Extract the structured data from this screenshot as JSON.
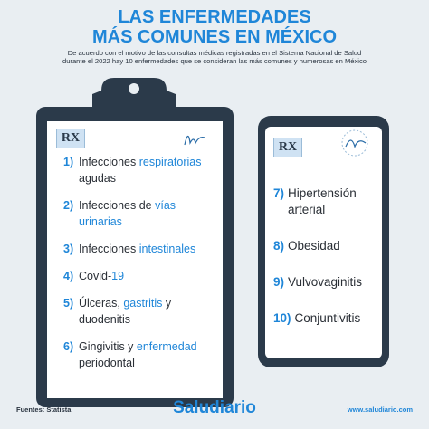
{
  "header": {
    "title_lines": [
      "LAS ENFERMEDADES",
      "MÁS COMUNES EN MÉXICO"
    ],
    "subtitle_lines": [
      "De acuerdo con el motivo de las consultas médicas registradas en el Sistema Nacional de Salud",
      "durante el 2022 hay 10 enfermedades que se consideran las más comunes y numerosas en México"
    ]
  },
  "clipboard": {
    "label": "RX",
    "items": [
      {
        "number": "1)",
        "parts": [
          {
            "text": "Infecciones ",
            "highlight": false
          },
          {
            "text": "respiratorias",
            "highlight": true
          },
          {
            "text": " agudas",
            "highlight": false
          }
        ]
      },
      {
        "number": "2)",
        "parts": [
          {
            "text": "Infecciones de ",
            "highlight": false
          },
          {
            "text": "vías urinarias",
            "highlight": true
          }
        ]
      },
      {
        "number": "3)",
        "parts": [
          {
            "text": "Infecciones ",
            "highlight": false
          },
          {
            "text": "intestinales",
            "highlight": true
          }
        ]
      },
      {
        "number": "4)",
        "parts": [
          {
            "text": "Covid-",
            "highlight": false
          },
          {
            "text": "19",
            "highlight": true
          }
        ]
      },
      {
        "number": "5)",
        "parts": [
          {
            "text": "Úlceras, ",
            "highlight": false
          },
          {
            "text": "gastritis",
            "highlight": true
          },
          {
            "text": " y duodenitis",
            "highlight": false
          }
        ]
      },
      {
        "number": "6)",
        "parts": [
          {
            "text": "Gingivitis y ",
            "highlight": false
          },
          {
            "text": "enfermedad",
            "highlight": true
          },
          {
            "text": " periodontal",
            "highlight": false
          }
        ]
      }
    ]
  },
  "phone": {
    "label": "RX",
    "items": [
      {
        "number": "7)",
        "parts": [
          {
            "text": "Hipertensión arterial",
            "highlight": false
          }
        ]
      },
      {
        "number": "8)",
        "parts": [
          {
            "text": "Obesidad",
            "highlight": false
          }
        ]
      },
      {
        "number": "9)",
        "parts": [
          {
            "text": "Vulvovaginitis",
            "highlight": false
          }
        ]
      },
      {
        "number": "10)",
        "parts": [
          {
            "text": "Conjuntivitis",
            "highlight": false
          }
        ]
      }
    ]
  },
  "footer": {
    "source": "Fuentes: Statista",
    "brand": "Saludiario",
    "url": "www.saludiario.com"
  }
}
